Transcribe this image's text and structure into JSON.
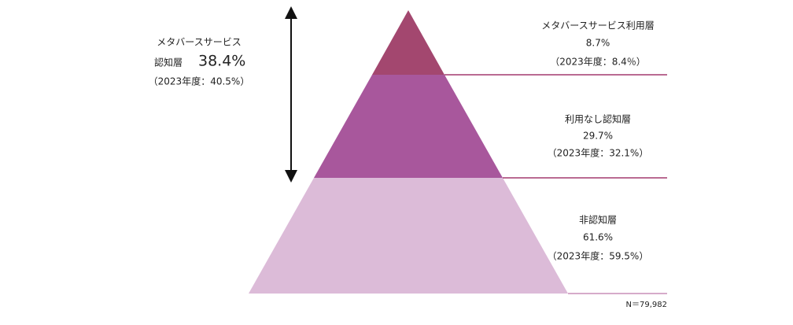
{
  "awareness": {
    "label_line1": "メタバースサービス",
    "label_line2": "認知層",
    "value": "38.4%",
    "previous": "（2023年度：40.5%）"
  },
  "layers": [
    {
      "name": "メタバースサービス利用層",
      "value": "8.7%",
      "previous": "（2023年度：8.4％）"
    },
    {
      "name": "利用なし認知層",
      "value": "29.7%",
      "previous": "（2023年度：32.1%）"
    },
    {
      "name": "非認知層",
      "value": "61.6%",
      "previous": "（2023年度：59.5%）"
    }
  ],
  "note": "N＝79,982"
}
